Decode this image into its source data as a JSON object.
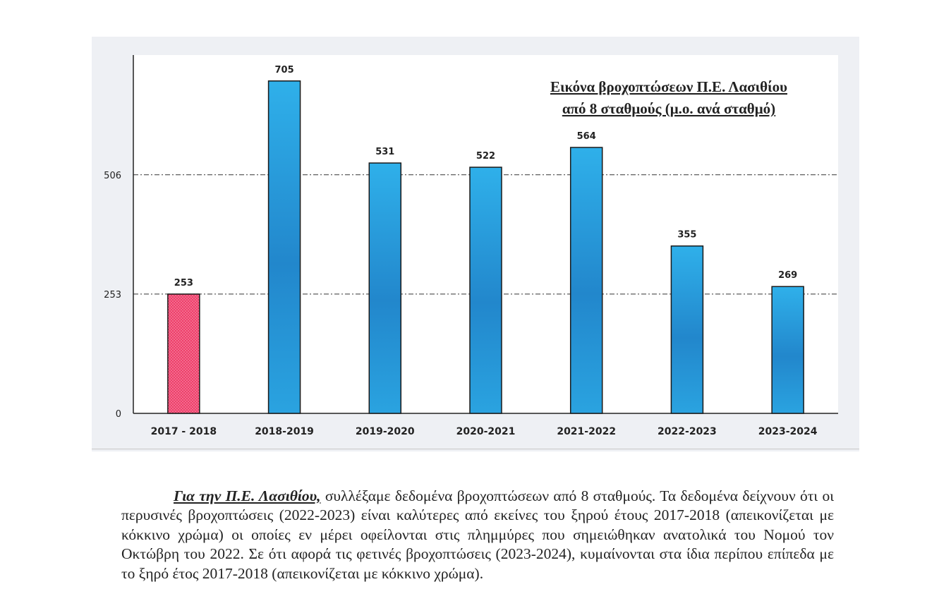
{
  "chart_data": {
    "type": "bar",
    "title_lines": [
      "Εικόνα βροχοπτώσεων Π.Ε. Λασιθίου",
      "από 8 σταθμούς (μ.ο. ανά σταθμό)"
    ],
    "categories": [
      "2017 - 2018",
      "2018-2019",
      "2019-2020",
      "2020-2021",
      "2021-2022",
      "2022-2023",
      "2023-2024"
    ],
    "values": [
      253,
      705,
      531,
      522,
      564,
      355,
      269
    ],
    "value_labels": [
      "253",
      "705",
      "531",
      "522",
      "564",
      "355",
      "269"
    ],
    "y_ticks": [
      0,
      253,
      506
    ],
    "y_tick_labels": [
      "0",
      "253",
      "506"
    ],
    "reference_lines": [
      253,
      506
    ],
    "ylim": [
      0,
      760
    ],
    "xlabel": "",
    "ylabel": "",
    "highlight_index": 0,
    "colors": {
      "bar": "#2aa3e0",
      "bar_dark": "#1f6fb8",
      "bar_highlight": "#ee3f6a",
      "outline": "#1a1a1a",
      "plot_bg": "#ffffff"
    }
  },
  "caption": {
    "lead": "Για την Π.Ε. Λασιθίου,",
    "body": " συλλέξαμε δεδομένα βροχοπτώσεων από 8 σταθμούς. Τα δεδομένα δείχνουν ότι οι περυσινές βροχοπτώσεις (2022-2023) είναι καλύτερες από εκείνες του ξηρού έτους 2017-2018 (απεικονίζεται με κόκκινο χρώμα) οι οποίες εν μέρει οφείλονται στις πλημμύρες που σημειώθηκαν ανατολικά του Νομού τον Οκτώβρη του 2022. Σε ότι αφορά τις φετινές βροχοπτώσεις (2023-2024), κυμαίνονται στα ίδια περίπου επίπεδα με το ξηρό έτος 2017-2018 (απεικονίζεται με κόκκινο χρώμα)."
  }
}
